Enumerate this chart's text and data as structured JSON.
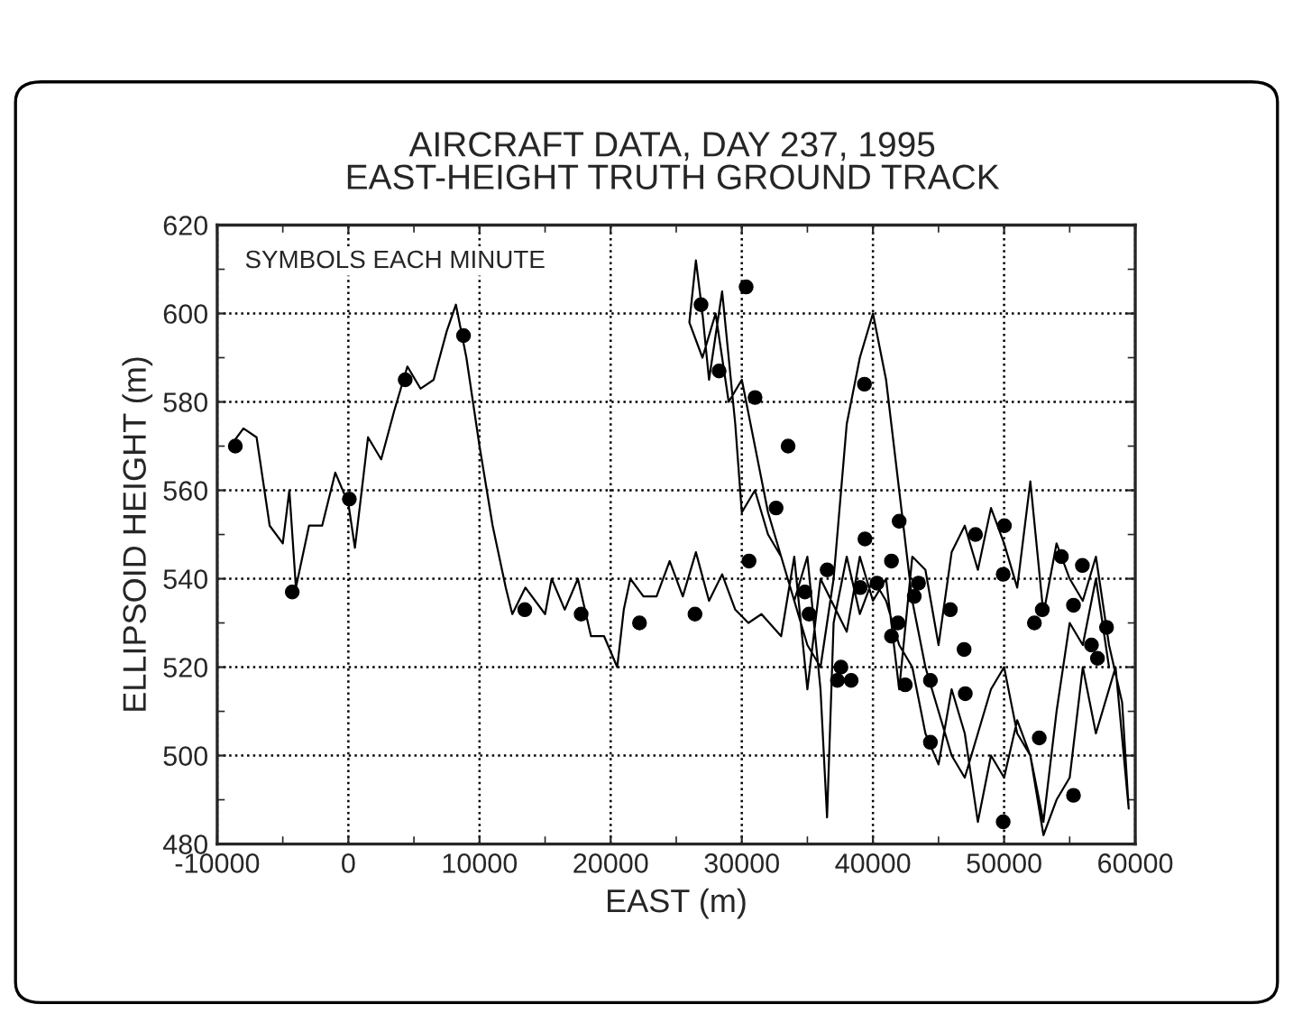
{
  "chart_data": {
    "type": "line",
    "title": "AIRCRAFT DATA, DAY 237, 1995\nEAST-HEIGHT TRUTH GROUND TRACK",
    "xlabel": "EAST (m)",
    "ylabel": "ELLIPSOID HEIGHT (m)",
    "annotations": [
      "SYMBOLS EACH MINUTE"
    ],
    "xlim": [
      -10000,
      60000
    ],
    "xticks": [
      -10000,
      0,
      10000,
      20000,
      30000,
      40000,
      50000,
      60000
    ],
    "ylim": [
      480,
      620
    ],
    "yticks": [
      480,
      500,
      520,
      540,
      560,
      580,
      600,
      620
    ],
    "grid": true,
    "line_style": "solid",
    "series": [
      {
        "color": "#000000",
        "marker": "none",
        "x": [
          -9000,
          -8000,
          -7000,
          -6000,
          -5000,
          -4500,
          -4000,
          -3000,
          -2000,
          -1000,
          0,
          500,
          1500,
          2500,
          3500,
          4500,
          5500,
          6500,
          7500,
          8200,
          9000,
          10000,
          11000,
          12000,
          12500,
          13500,
          15000,
          15500,
          16500,
          17500,
          18500,
          19500,
          20500,
          21000,
          21500,
          22500,
          23500,
          24500,
          25500,
          26500,
          27500,
          28500,
          29500,
          30500,
          31500,
          33000,
          34000,
          35000,
          36000,
          37000,
          38000,
          39000,
          40000,
          41000,
          42000,
          43000,
          44000,
          45000,
          46000,
          47000,
          48000,
          49000,
          50000,
          51000,
          52000,
          53000,
          54000,
          55000,
          56000,
          57000,
          58000,
          59000,
          59500,
          58500,
          57000,
          56000,
          55000,
          54000,
          53000,
          52000,
          51000,
          50000,
          49000,
          48000,
          47000,
          46000,
          45000,
          44000,
          43000,
          42000,
          41000,
          40000,
          39000,
          38000,
          37000,
          36500,
          36000,
          35000,
          34000,
          33000,
          32000,
          31000,
          30000,
          29500,
          29000,
          28500,
          28000,
          27500,
          27000,
          26500,
          26000,
          27000,
          28000,
          29000,
          30000,
          31000,
          32000,
          33000,
          34000,
          35000,
          36000,
          37000,
          38000,
          39000,
          40000,
          41000,
          42000,
          43000,
          44000,
          45000,
          46000,
          47000,
          48000,
          49000,
          50000,
          51000,
          52000,
          53000,
          54000,
          55000,
          56000,
          57000,
          58000
        ],
        "values": [
          570,
          574,
          572,
          552,
          548,
          560,
          538,
          552,
          552,
          564,
          557,
          547,
          572,
          567,
          578,
          588,
          583,
          585,
          596,
          602,
          590,
          570,
          552,
          538,
          532,
          538,
          532,
          540,
          533,
          540,
          527,
          527,
          520,
          533,
          540,
          536,
          536,
          544,
          536,
          546,
          535,
          541,
          533,
          530,
          532,
          527,
          545,
          515,
          540,
          534,
          528,
          545,
          535,
          540,
          515,
          545,
          542,
          525,
          546,
          552,
          542,
          556,
          548,
          538,
          562,
          532,
          548,
          540,
          535,
          545,
          525,
          512,
          488,
          520,
          505,
          520,
          495,
          490,
          482,
          500,
          508,
          495,
          500,
          485,
          505,
          515,
          498,
          505,
          520,
          525,
          535,
          540,
          532,
          545,
          530,
          486,
          515,
          545,
          535,
          545,
          550,
          560,
          555,
          575,
          590,
          605,
          595,
          585,
          600,
          612,
          598,
          590,
          600,
          580,
          585,
          570,
          555,
          545,
          535,
          525,
          520,
          540,
          575,
          590,
          600,
          585,
          560,
          535,
          520,
          510,
          500,
          495,
          505,
          515,
          520,
          505,
          500,
          485,
          510,
          530,
          525,
          540,
          520
        ]
      },
      {
        "type": "scatter",
        "color": "#000000",
        "marker": "circle",
        "x": [
          -8620,
          -4280,
          75,
          4335,
          8780,
          13450,
          17750,
          22200,
          26430,
          26890,
          28270,
          30330,
          31010,
          33530,
          32615,
          39350,
          30550,
          34810,
          35130,
          36510,
          37560,
          37290,
          38340,
          39030,
          39390,
          40310,
          41410,
          42000,
          41910,
          41410,
          43150,
          43470,
          42460,
          44380,
          44380,
          45900,
          46950,
          47040,
          47820,
          50020,
          49930,
          49930,
          52310,
          52910,
          52680,
          54370,
          55970,
          55290,
          56660,
          57120,
          57810,
          55290
        ],
        "values": [
          570,
          537,
          558,
          585,
          595,
          533,
          532,
          530,
          532,
          602,
          587,
          606,
          581,
          570,
          556,
          584,
          544,
          537,
          532,
          542,
          520,
          517,
          517,
          538,
          549,
          539,
          544,
          553,
          530,
          527,
          536,
          539,
          516,
          517,
          503,
          533,
          524,
          514,
          550,
          552,
          541,
          485,
          530,
          533,
          504,
          545,
          543,
          534,
          525,
          522,
          529,
          491
        ]
      }
    ]
  }
}
